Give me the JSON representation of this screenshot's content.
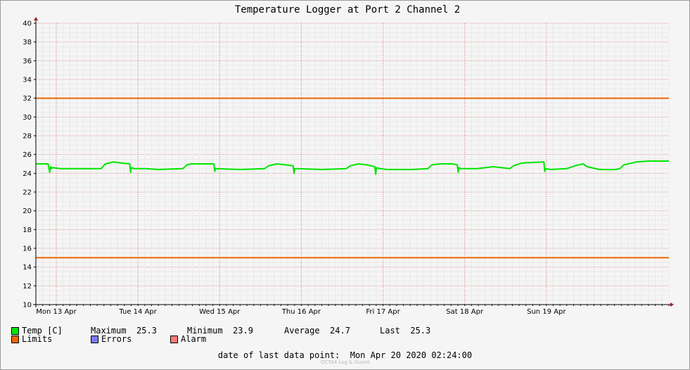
{
  "chart_data": {
    "type": "line",
    "title": "Temperature Logger at Port 2 Channel 2",
    "ylim": [
      10,
      40
    ],
    "yticks": [
      10,
      12,
      14,
      16,
      18,
      20,
      22,
      24,
      26,
      28,
      30,
      32,
      34,
      36,
      38,
      40
    ],
    "xlim": [
      0,
      7.75
    ],
    "day_labels": [
      "Mon 13 Apr",
      "Tue 14 Apr",
      "Wed 15 Apr",
      "Thu 16 Apr",
      "Fri 17 Apr",
      "Sat 18 Apr",
      "Sun 19 Apr"
    ],
    "grid": true,
    "series": [
      {
        "name": "Temp [C]",
        "color": "#00e600",
        "x": [
          0,
          0.15,
          0.17,
          0.18,
          0.19,
          0.2,
          0.3,
          0.8,
          0.85,
          0.95,
          1.05,
          1.15,
          1.16,
          1.17,
          1.2,
          1.35,
          1.5,
          1.8,
          1.85,
          1.9,
          2.1,
          2.18,
          2.19,
          2.2,
          2.5,
          2.8,
          2.85,
          2.95,
          3.05,
          3.15,
          3.16,
          3.17,
          3.2,
          3.5,
          3.8,
          3.85,
          3.95,
          4.05,
          4.15,
          4.16,
          4.17,
          4.2,
          4.22,
          4.3,
          4.6,
          4.8,
          4.85,
          4.95,
          5.1,
          5.16,
          5.17,
          5.18,
          5.2,
          5.4,
          5.6,
          5.7,
          5.8,
          5.85,
          5.95,
          6.2,
          6.22,
          6.23,
          6.24,
          6.3,
          6.5,
          6.6,
          6.7,
          6.75,
          6.9,
          7.1,
          7.15,
          7.2,
          7.3,
          7.35,
          7.5,
          7.75
        ],
        "values": [
          25.0,
          25.0,
          24.1,
          24.7,
          24.5,
          24.6,
          24.5,
          24.5,
          25.0,
          25.2,
          25.1,
          25.0,
          24.1,
          24.6,
          24.5,
          24.5,
          24.4,
          24.5,
          24.9,
          25.0,
          25.0,
          25.0,
          24.2,
          24.5,
          24.4,
          24.5,
          24.8,
          25.0,
          24.9,
          24.8,
          24.0,
          24.5,
          24.5,
          24.4,
          24.5,
          24.8,
          25.0,
          24.9,
          24.7,
          23.9,
          24.6,
          24.5,
          24.5,
          24.4,
          24.4,
          24.5,
          24.9,
          25.0,
          25.0,
          24.9,
          24.1,
          24.6,
          24.5,
          24.5,
          24.7,
          24.6,
          24.5,
          24.8,
          25.1,
          25.2,
          25.2,
          24.2,
          24.5,
          24.4,
          24.5,
          24.8,
          25.0,
          24.7,
          24.4,
          24.4,
          24.5,
          24.9,
          25.1,
          25.2,
          25.3,
          25.3
        ]
      },
      {
        "name": "Limits",
        "color": "#ee6600",
        "y": 32
      },
      {
        "name": "Limits",
        "color": "#ee6600",
        "y": 15
      }
    ]
  },
  "legend": {
    "temp_label": "Temp [C]",
    "limits_label": "Limits",
    "errors_label": "Errors",
    "alarm_label": "Alarm",
    "colors": {
      "temp": "#00e600",
      "limits": "#ee6600",
      "errors": "#7a7aff",
      "alarm": "#ff7a7a"
    }
  },
  "stats": {
    "max_label": "Maximum",
    "max_value": "25.3",
    "min_label": "Minimum",
    "min_value": "23.9",
    "avg_label": "Average",
    "avg_value": "24.7",
    "last_label": "Last",
    "last_value": "25.3"
  },
  "footer": {
    "label": "date of last data point:",
    "value": "Mon Apr 20 2020 02:24:00",
    "watermark": "OCTA4 Log & Guard"
  }
}
